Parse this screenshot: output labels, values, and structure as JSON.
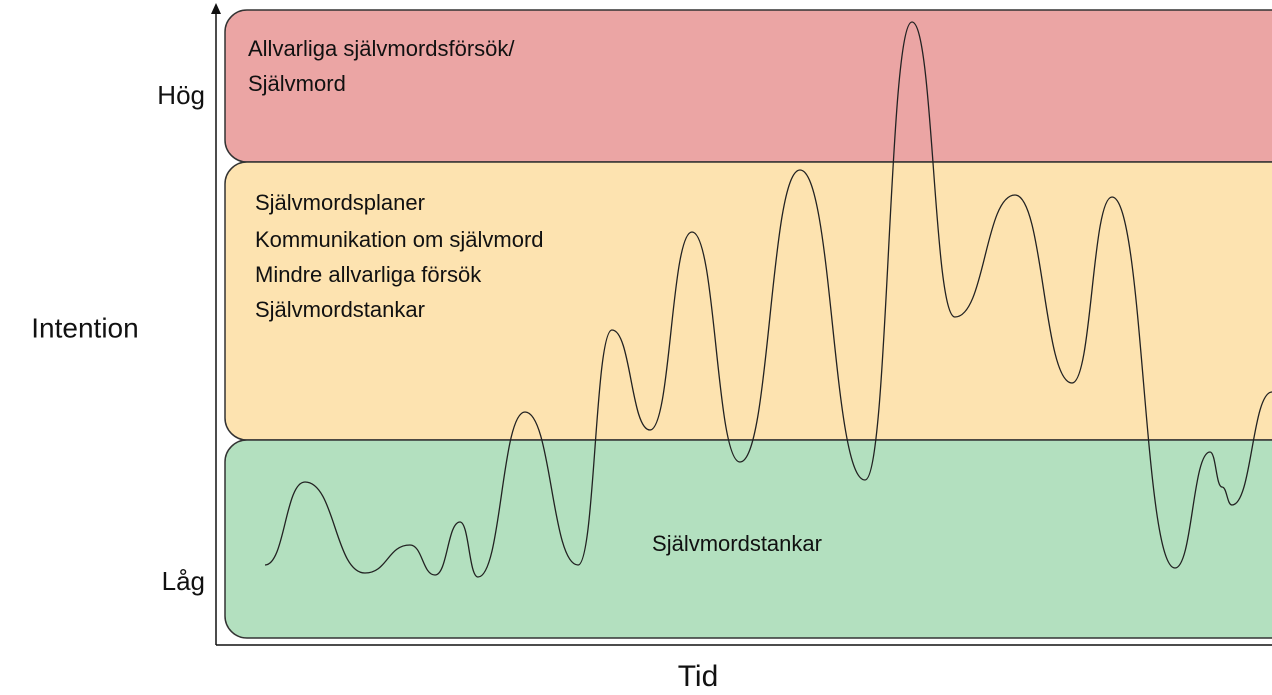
{
  "axes": {
    "y_label": "Intention",
    "y_high": "Hög",
    "y_low": "Låg",
    "x_label": "Tid"
  },
  "zones": [
    {
      "lines": [
        "Allvarliga självmordsförsök/",
        "Självmord"
      ]
    },
    {
      "lines": [
        "Självmordsplaner",
        "Kommunikation om självmord",
        "Mindre allvarliga försök",
        "Självmordstankar"
      ]
    },
    {
      "lines": [
        "Självmordstankar"
      ]
    }
  ]
}
